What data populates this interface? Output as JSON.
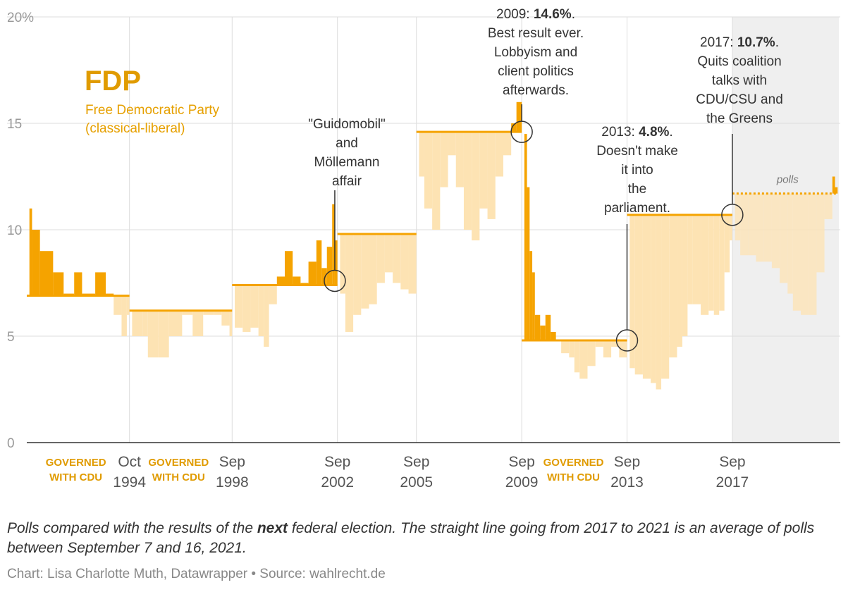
{
  "chart_data": {
    "type": "area",
    "title": "FDP",
    "subtitle_line1": "Free Democratic Party",
    "subtitle_line2": "(classical-liberal)",
    "ylim": [
      0,
      20
    ],
    "yticks": [
      {
        "value": 20,
        "label": "20%"
      },
      {
        "value": 15,
        "label": "15"
      },
      {
        "value": 10,
        "label": "10"
      },
      {
        "value": 5,
        "label": "5"
      },
      {
        "value": 0,
        "label": "0"
      }
    ],
    "xlim": [
      1990.9,
      2021.8
    ],
    "elections": [
      {
        "date": 1994.8,
        "line1": "Oct",
        "line2": "1994"
      },
      {
        "date": 1998.7,
        "line1": "Sep",
        "line2": "1998"
      },
      {
        "date": 2002.7,
        "line1": "Sep",
        "line2": "2002"
      },
      {
        "date": 2005.7,
        "line1": "Sep",
        "line2": "2005"
      },
      {
        "date": 2009.7,
        "line1": "Sep",
        "line2": "2009"
      },
      {
        "date": 2013.7,
        "line1": "Sep",
        "line2": "2013"
      },
      {
        "date": 2017.7,
        "line1": "Sep",
        "line2": "2017"
      }
    ],
    "governed_label_line1": "GOVERNED",
    "governed_label_line2": "WITH CDU",
    "governed_periods": [
      {
        "start": 1990.9,
        "end": 1994.8
      },
      {
        "start": 1994.8,
        "end": 1998.7
      },
      {
        "start": 2009.7,
        "end": 2013.7
      }
    ],
    "next_results": [
      {
        "start": 1990.9,
        "end": 1994.8,
        "value": 6.9
      },
      {
        "start": 1994.8,
        "end": 1998.7,
        "value": 6.2
      },
      {
        "start": 1998.7,
        "end": 2002.7,
        "value": 7.4
      },
      {
        "start": 2002.7,
        "end": 2005.7,
        "value": 9.8
      },
      {
        "start": 2005.7,
        "end": 2009.7,
        "value": 14.6
      },
      {
        "start": 2009.7,
        "end": 2013.7,
        "value": 4.8
      },
      {
        "start": 2013.7,
        "end": 2017.7,
        "value": 10.7
      },
      {
        "start": 2017.7,
        "end": 2021.7,
        "value": 11.7
      }
    ],
    "polls": [
      [
        1991.0,
        11.0
      ],
      [
        1991.1,
        10.0
      ],
      [
        1991.4,
        9.0
      ],
      [
        1991.9,
        8.0
      ],
      [
        1992.3,
        7.0
      ],
      [
        1992.7,
        8.0
      ],
      [
        1993.0,
        7.0
      ],
      [
        1993.5,
        8.0
      ],
      [
        1993.9,
        7.0
      ],
      [
        1994.2,
        6.0
      ],
      [
        1994.5,
        5.0
      ],
      [
        1994.7,
        6.0
      ],
      [
        1994.9,
        5.0
      ],
      [
        1995.3,
        5.0
      ],
      [
        1995.5,
        4.0
      ],
      [
        1995.9,
        4.0
      ],
      [
        1996.3,
        5.0
      ],
      [
        1996.8,
        6.0
      ],
      [
        1997.2,
        5.0
      ],
      [
        1997.6,
        6.0
      ],
      [
        1998.0,
        6.0
      ],
      [
        1998.3,
        5.5
      ],
      [
        1998.6,
        5.0
      ],
      [
        1998.8,
        5.4
      ],
      [
        1999.1,
        5.2
      ],
      [
        1999.4,
        5.4
      ],
      [
        1999.7,
        5.0
      ],
      [
        1999.9,
        4.5
      ],
      [
        2000.1,
        6.5
      ],
      [
        2000.4,
        7.8
      ],
      [
        2000.7,
        9.0
      ],
      [
        2001.0,
        7.8
      ],
      [
        2001.3,
        7.5
      ],
      [
        2001.6,
        8.5
      ],
      [
        2001.9,
        9.5
      ],
      [
        2002.1,
        8.2
      ],
      [
        2002.3,
        9.2
      ],
      [
        2002.5,
        11.2
      ],
      [
        2002.6,
        9.5
      ],
      [
        2002.8,
        7.0
      ],
      [
        2003.0,
        5.2
      ],
      [
        2003.3,
        6.0
      ],
      [
        2003.6,
        6.3
      ],
      [
        2003.9,
        6.5
      ],
      [
        2004.2,
        7.5
      ],
      [
        2004.5,
        8.0
      ],
      [
        2004.8,
        7.5
      ],
      [
        2005.1,
        7.2
      ],
      [
        2005.4,
        7.0
      ],
      [
        2005.8,
        12.5
      ],
      [
        2006.0,
        11.0
      ],
      [
        2006.3,
        10.0
      ],
      [
        2006.6,
        12.0
      ],
      [
        2006.9,
        13.5
      ],
      [
        2007.2,
        12.0
      ],
      [
        2007.5,
        10.0
      ],
      [
        2007.8,
        9.5
      ],
      [
        2008.1,
        11.0
      ],
      [
        2008.4,
        10.5
      ],
      [
        2008.7,
        12.5
      ],
      [
        2009.0,
        13.5
      ],
      [
        2009.3,
        15.0
      ],
      [
        2009.5,
        16.0
      ],
      [
        2009.8,
        14.5
      ],
      [
        2009.9,
        12.0
      ],
      [
        2010.0,
        9.0
      ],
      [
        2010.1,
        8.0
      ],
      [
        2010.2,
        6.0
      ],
      [
        2010.4,
        5.5
      ],
      [
        2010.6,
        6.0
      ],
      [
        2010.8,
        5.2
      ],
      [
        2011.0,
        4.8
      ],
      [
        2011.2,
        4.2
      ],
      [
        2011.5,
        4.0
      ],
      [
        2011.7,
        3.3
      ],
      [
        2011.9,
        3.0
      ],
      [
        2012.2,
        3.6
      ],
      [
        2012.5,
        4.5
      ],
      [
        2012.8,
        4.0
      ],
      [
        2013.1,
        4.5
      ],
      [
        2013.4,
        4.0
      ],
      [
        2013.8,
        3.5
      ],
      [
        2014.0,
        3.2
      ],
      [
        2014.3,
        3.0
      ],
      [
        2014.6,
        2.8
      ],
      [
        2014.8,
        2.5
      ],
      [
        2015.0,
        3.0
      ],
      [
        2015.3,
        4.0
      ],
      [
        2015.6,
        4.5
      ],
      [
        2015.8,
        5.0
      ],
      [
        2016.0,
        6.5
      ],
      [
        2016.2,
        6.5
      ],
      [
        2016.5,
        6.0
      ],
      [
        2016.8,
        6.2
      ],
      [
        2017.0,
        6.0
      ],
      [
        2017.2,
        6.2
      ],
      [
        2017.4,
        8.0
      ],
      [
        2017.6,
        9.5
      ],
      [
        2017.8,
        9.5
      ],
      [
        2018.0,
        8.8
      ],
      [
        2018.3,
        8.8
      ],
      [
        2018.6,
        8.5
      ],
      [
        2018.9,
        8.5
      ],
      [
        2019.2,
        8.2
      ],
      [
        2019.5,
        7.5
      ],
      [
        2019.8,
        7.0
      ],
      [
        2020.0,
        6.2
      ],
      [
        2020.3,
        6.0
      ],
      [
        2020.6,
        6.0
      ],
      [
        2020.9,
        8.0
      ],
      [
        2021.2,
        10.5
      ],
      [
        2021.5,
        12.5
      ],
      [
        2021.6,
        12.0
      ]
    ],
    "polls_label": "polls",
    "annotations": [
      {
        "x": 2002.6,
        "y": 7.6,
        "lines": [
          [
            "\"Guidomobil\""
          ],
          [
            "and"
          ],
          [
            "Möllemann"
          ],
          [
            "affair"
          ]
        ]
      },
      {
        "x": 2009.7,
        "y": 14.6,
        "lines": [
          [
            "2009: ",
            "14.6%",
            "."
          ],
          [
            "Best result ever."
          ],
          [
            "Lobbyism and"
          ],
          [
            "client politics"
          ],
          [
            "afterwards."
          ]
        ]
      },
      {
        "x": 2013.7,
        "y": 4.8,
        "lines": [
          [
            "2013: ",
            "4.8%",
            "."
          ],
          [
            "Doesn't make"
          ],
          [
            "it into"
          ],
          [
            "the"
          ],
          [
            "parliament."
          ]
        ]
      },
      {
        "x": 2017.7,
        "y": 10.7,
        "lines": [
          [
            "2017: ",
            "10.7%",
            "."
          ],
          [
            "Quits coalition"
          ],
          [
            "talks with"
          ],
          [
            "CDU/CSU and"
          ],
          [
            "the Greens"
          ]
        ]
      }
    ],
    "colors": {
      "strong": "#f5a300",
      "light": "#fde3b3",
      "shaded": "#efefef",
      "grid": "#dddddd"
    }
  },
  "note": {
    "prefix": "Polls compared with the results of the ",
    "bold": "next",
    "suffix": " federal election. The straight line going from 2017 to 2021 is an average of polls between September 7 and 16, 2021."
  },
  "credit": "Chart: Lisa Charlotte Muth, Datawrapper • Source: wahlrecht.de"
}
